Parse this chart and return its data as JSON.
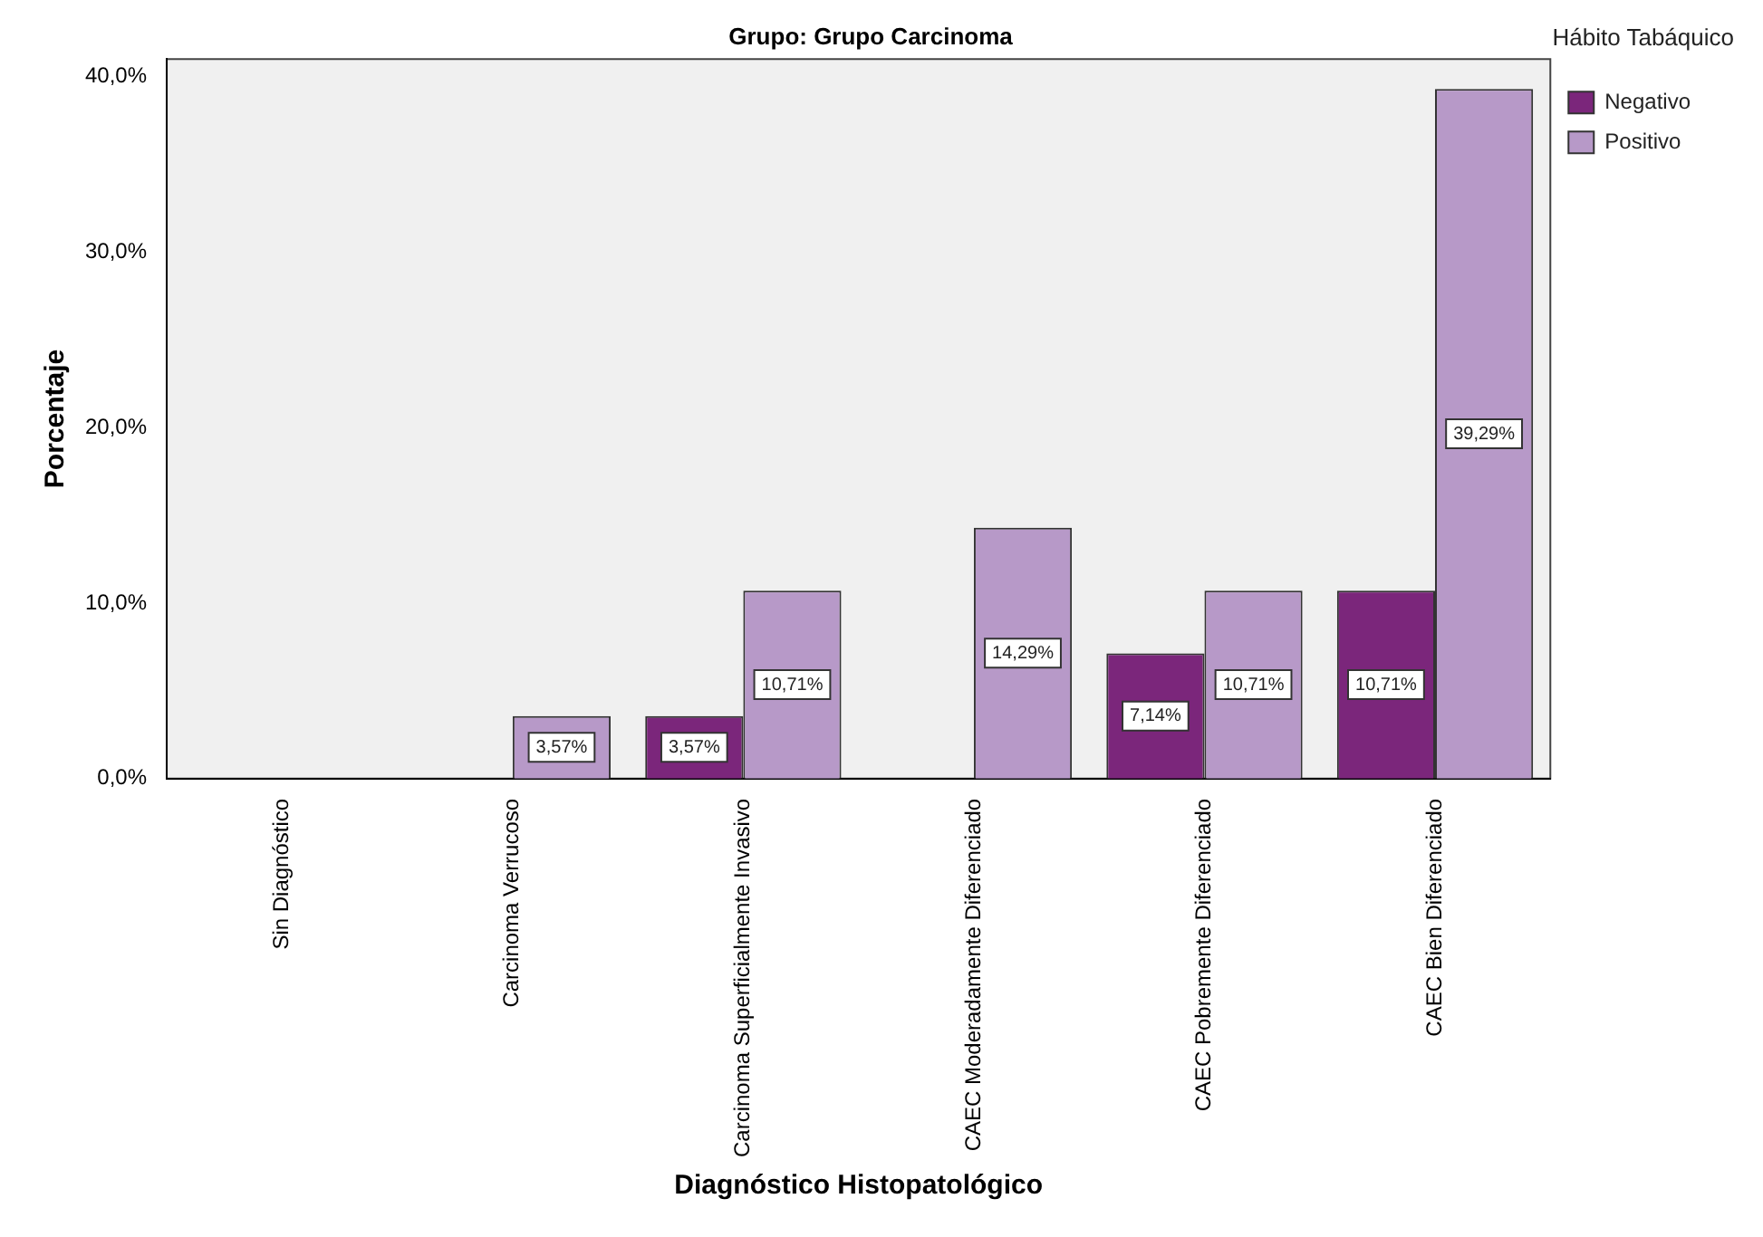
{
  "chart_data": {
    "type": "bar",
    "title": "Grupo: Grupo Carcinoma",
    "xlabel": "Diagnóstico Histopatológico",
    "ylabel": "Porcentaje",
    "legend_title": "Hábito Tabáquico",
    "categories": [
      "Sin Diagnóstico",
      "Carcinoma Verrucoso",
      "Carcinoma Superficialmente Invasivo",
      "CAEC Moderadamente Diferenciado",
      "CAEC Pobremente Diferenciado",
      "CAEC Bien Diferenciado"
    ],
    "series": [
      {
        "name": "Negativo",
        "color": "#7b267b",
        "values": [
          0,
          0,
          3.57,
          0,
          7.14,
          10.71
        ],
        "value_labels": [
          null,
          null,
          "3,57%",
          null,
          "7,14%",
          "10,71%"
        ]
      },
      {
        "name": "Positivo",
        "color": "#b799c8",
        "values": [
          0,
          3.57,
          10.71,
          14.29,
          10.71,
          39.29
        ],
        "value_labels": [
          null,
          "3,57%",
          "10,71%",
          "14,29%",
          "10,71%",
          "39,29%"
        ]
      }
    ],
    "ylim": [
      0,
      41
    ],
    "yticks": [
      {
        "value": 0,
        "label": "0,0%"
      },
      {
        "value": 10,
        "label": "10,0%"
      },
      {
        "value": 20,
        "label": "20,0%"
      },
      {
        "value": 30,
        "label": "30,0%"
      },
      {
        "value": 40,
        "label": "40,0%"
      }
    ],
    "grid": false,
    "legend": "top right"
  }
}
